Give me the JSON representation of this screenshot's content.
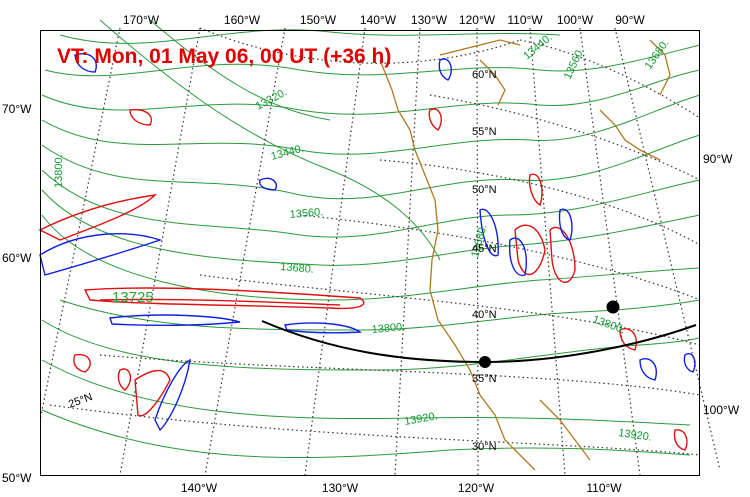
{
  "title": "VT:  Mon, 01 May 06, 00 UT (+36 h)",
  "top_lon_labels": [
    "170°W",
    "160°W",
    "150°W",
    "140°W",
    "130°W",
    "120°W",
    "110°W",
    "100°W",
    "90°W"
  ],
  "bottom_lon_labels": [
    "140°W",
    "130°W",
    "120°W",
    "110°W"
  ],
  "left_labels": [
    "70°W",
    "60°W",
    "50°W"
  ],
  "right_labels": [
    "90°W",
    "100°W"
  ],
  "lat_labels": [
    "60°N",
    "55°N",
    "50°N",
    "45°N",
    "40°N",
    "35°N",
    "30°N",
    "25°N"
  ],
  "contour_labels": [
    "13320.",
    "13440.",
    "13560.",
    "13680.",
    "13800.",
    "13920.",
    "13920.",
    "13800.",
    "13680.",
    "13560.",
    "13440.",
    "13680.",
    "13800."
  ],
  "high_label": "13725",
  "colors": {
    "title": "#e00000",
    "contour": "#2a9a3a",
    "coast": "#b07820",
    "positive": "#e01010",
    "negative": "#1020e0"
  }
}
